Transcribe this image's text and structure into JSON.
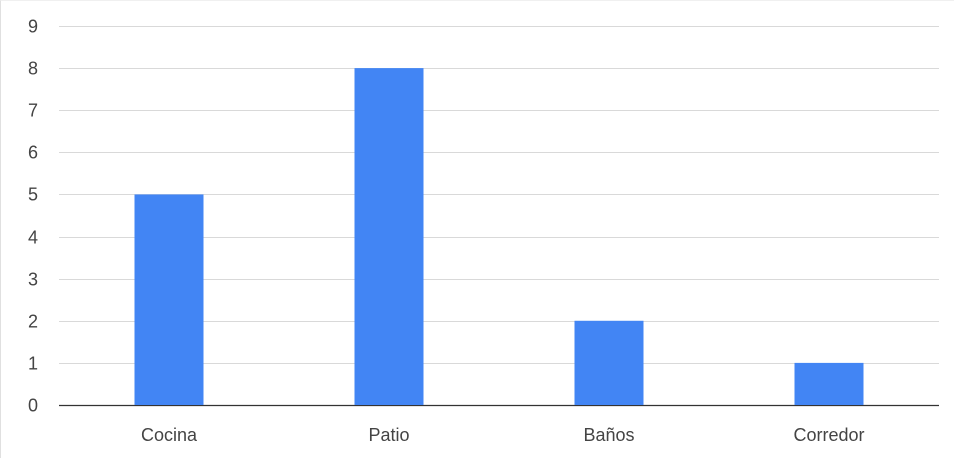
{
  "chart_data": {
    "type": "bar",
    "categories": [
      "Cocina",
      "Patio",
      "Baños",
      "Corredor"
    ],
    "values": [
      5,
      8,
      2,
      1
    ],
    "ylim": [
      0,
      9
    ],
    "yticks": [
      0,
      1,
      2,
      3,
      4,
      5,
      6,
      7,
      8,
      9
    ],
    "grid": true,
    "legend": "none",
    "colors": {
      "bar": "#4285f4",
      "grid": "#d9d9d9",
      "axis": "#333333",
      "label": "#444444"
    }
  }
}
